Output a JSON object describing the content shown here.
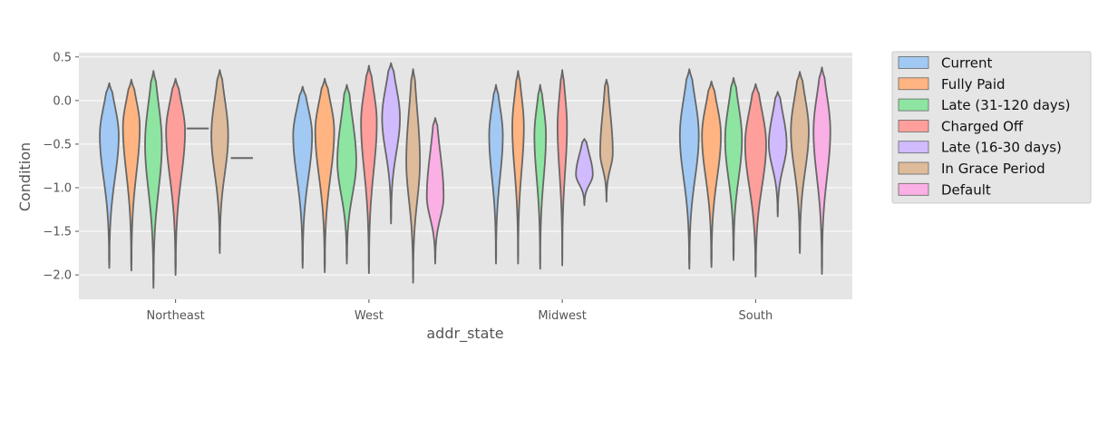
{
  "chart_data": {
    "type": "violin",
    "xlabel": "addr_state",
    "ylabel": "Condition",
    "ylim": [
      -2.28,
      0.55
    ],
    "yticks": [
      0.5,
      0.0,
      -0.5,
      -1.0,
      -1.5,
      -2.0
    ],
    "ytick_labels": [
      "0.5",
      "0.0",
      "−0.5",
      "−1.0",
      "−1.5",
      "−2.0"
    ],
    "grid": true,
    "legend_position": "outside-right",
    "categories": [
      "Northeast",
      "West",
      "Midwest",
      "South"
    ],
    "series": [
      {
        "name": "Current",
        "color": "#a1c9f4"
      },
      {
        "name": "Fully Paid",
        "color": "#ffb482"
      },
      {
        "name": "Late (31-120 days)",
        "color": "#8de5a1"
      },
      {
        "name": "Charged Off",
        "color": "#ff9f9b"
      },
      {
        "name": "Late (16-30 days)",
        "color": "#d0bbff"
      },
      {
        "name": "In Grace Period",
        "color": "#debb9b"
      },
      {
        "name": "Default",
        "color": "#fab0e4"
      }
    ],
    "violins": [
      {
        "category": "Northeast",
        "series": "Current",
        "min": -1.92,
        "max": 0.2,
        "peak": -0.4,
        "width": 0.9
      },
      {
        "category": "Northeast",
        "series": "Fully Paid",
        "min": -1.95,
        "max": 0.24,
        "peak": -0.3,
        "width": 0.8
      },
      {
        "category": "Northeast",
        "series": "Late (31-120 days)",
        "min": -2.15,
        "max": 0.34,
        "peak": -0.5,
        "width": 0.8
      },
      {
        "category": "Northeast",
        "series": "Charged Off",
        "min": -2.0,
        "max": 0.25,
        "peak": -0.35,
        "width": 0.9
      },
      {
        "category": "Northeast",
        "series": "Late (16-30 days)",
        "min": -0.32,
        "max": -0.32,
        "peak": -0.32,
        "width": 0.0
      },
      {
        "category": "Northeast",
        "series": "In Grace Period",
        "min": -1.75,
        "max": 0.35,
        "peak": -0.4,
        "width": 0.8
      },
      {
        "category": "Northeast",
        "series": "Default",
        "min": -0.66,
        "max": -0.66,
        "peak": -0.66,
        "width": 0.0
      },
      {
        "category": "West",
        "series": "Current",
        "min": -1.92,
        "max": 0.16,
        "peak": -0.4,
        "width": 0.9
      },
      {
        "category": "West",
        "series": "Fully Paid",
        "min": -1.97,
        "max": 0.25,
        "peak": -0.35,
        "width": 0.9
      },
      {
        "category": "West",
        "series": "Late (31-120 days)",
        "min": -1.87,
        "max": 0.18,
        "peak": -0.7,
        "width": 0.9
      },
      {
        "category": "West",
        "series": "Charged Off",
        "min": -1.98,
        "max": 0.4,
        "peak": -0.25,
        "width": 0.75
      },
      {
        "category": "West",
        "series": "Late (16-30 days)",
        "min": -1.41,
        "max": 0.43,
        "peak": -0.2,
        "width": 0.85
      },
      {
        "category": "West",
        "series": "In Grace Period",
        "min": -2.09,
        "max": 0.36,
        "peak": -0.7,
        "width": 0.65
      },
      {
        "category": "West",
        "series": "Default",
        "min": -1.87,
        "max": -0.2,
        "peak": -1.1,
        "width": 0.8
      },
      {
        "category": "Midwest",
        "series": "Current",
        "min": -1.87,
        "max": 0.18,
        "peak": -0.4,
        "width": 0.65
      },
      {
        "category": "Midwest",
        "series": "Fully Paid",
        "min": -1.87,
        "max": 0.34,
        "peak": -0.3,
        "width": 0.55
      },
      {
        "category": "Midwest",
        "series": "Late (31-120 days)",
        "min": -1.93,
        "max": 0.18,
        "peak": -0.4,
        "width": 0.55
      },
      {
        "category": "Midwest",
        "series": "Charged Off",
        "min": -1.89,
        "max": 0.35,
        "peak": -0.3,
        "width": 0.45
      },
      {
        "category": "Midwest",
        "series": "Late (16-30 days)",
        "min": -1.2,
        "max": -0.44,
        "peak": -0.85,
        "width": 0.8
      },
      {
        "category": "Midwest",
        "series": "In Grace Period",
        "min": -1.16,
        "max": 0.24,
        "peak": -0.6,
        "width": 0.6
      },
      {
        "category": "Midwest",
        "series": "Default",
        "min": null,
        "max": null,
        "peak": null,
        "width": 0.0
      },
      {
        "category": "South",
        "series": "Current",
        "min": -1.93,
        "max": 0.36,
        "peak": -0.4,
        "width": 0.9
      },
      {
        "category": "South",
        "series": "Fully Paid",
        "min": -1.91,
        "max": 0.22,
        "peak": -0.4,
        "width": 0.9
      },
      {
        "category": "South",
        "series": "Late (31-120 days)",
        "min": -1.83,
        "max": 0.26,
        "peak": -0.45,
        "width": 0.8
      },
      {
        "category": "South",
        "series": "Charged Off",
        "min": -2.02,
        "max": 0.19,
        "peak": -0.5,
        "width": 1.0
      },
      {
        "category": "South",
        "series": "Late (16-30 days)",
        "min": -1.33,
        "max": 0.1,
        "peak": -0.5,
        "width": 0.85
      },
      {
        "category": "South",
        "series": "In Grace Period",
        "min": -1.75,
        "max": 0.33,
        "peak": -0.35,
        "width": 0.85
      },
      {
        "category": "South",
        "series": "Default",
        "min": -1.99,
        "max": 0.38,
        "peak": -0.35,
        "width": 0.8
      }
    ]
  }
}
